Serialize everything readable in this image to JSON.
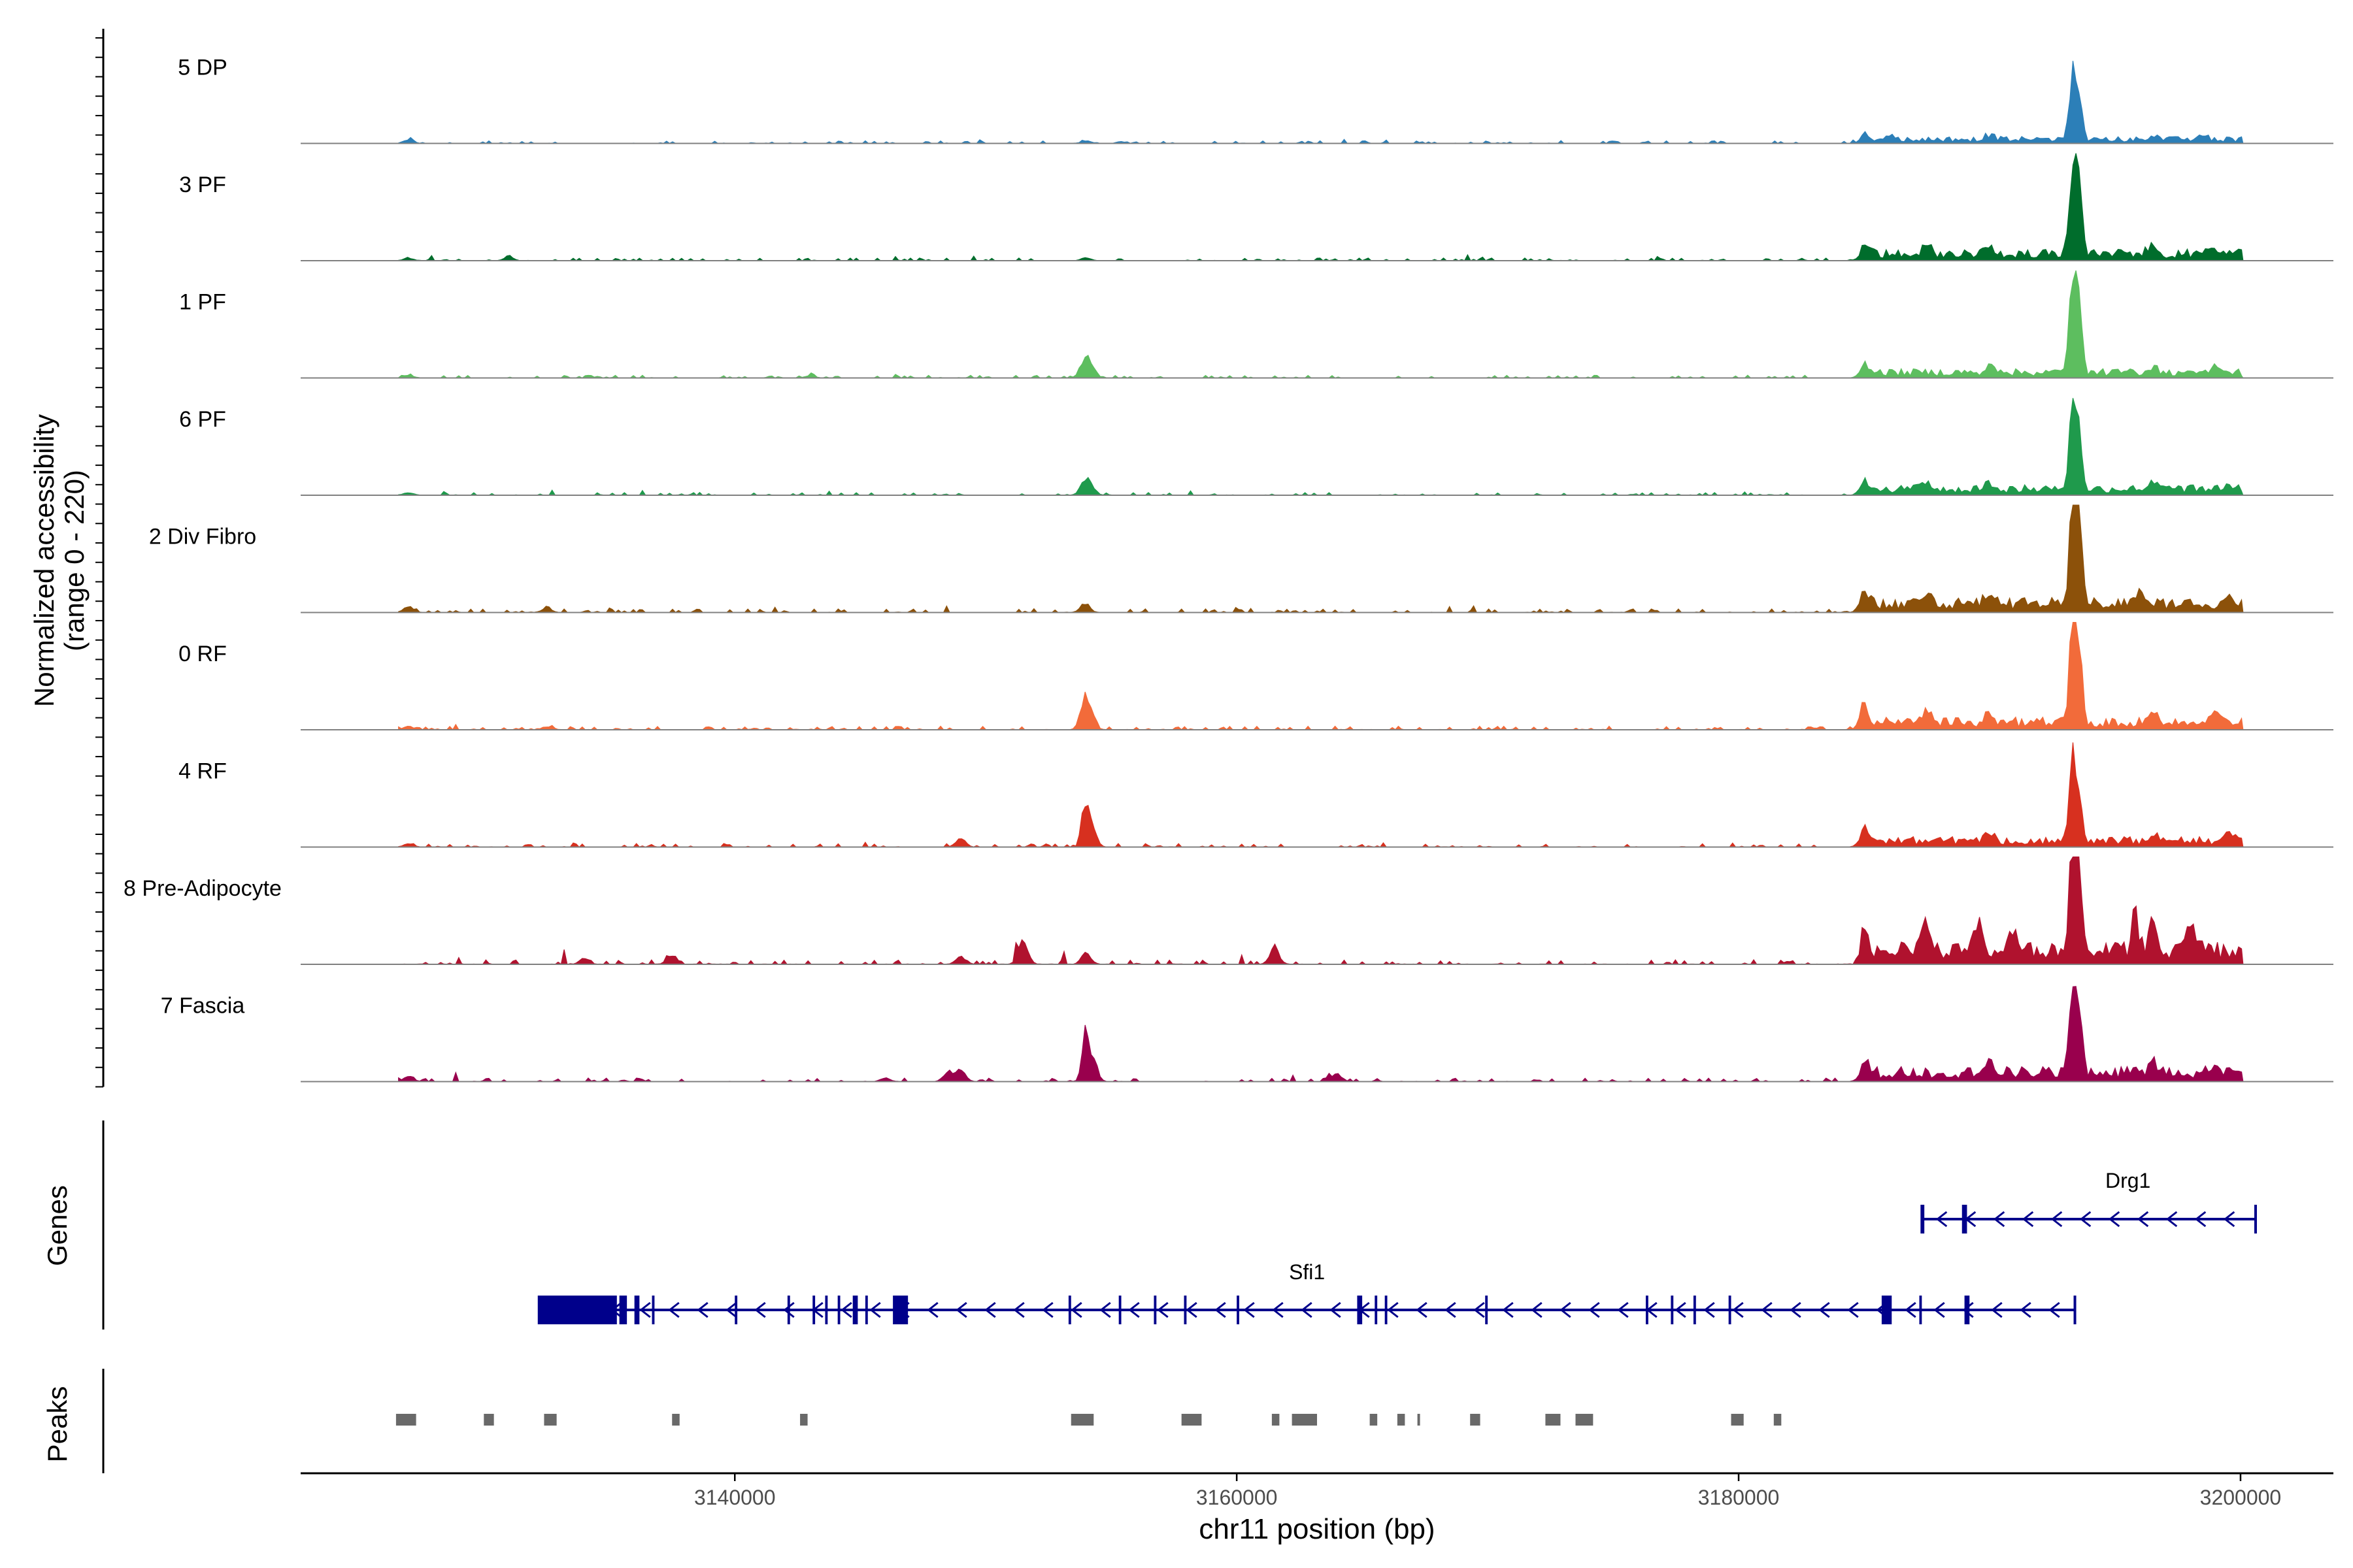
{
  "chart_data": {
    "type": "area",
    "title": "",
    "ylabel_line1": "Normalized accessibility",
    "ylabel_line2": "(range 0 - 220)",
    "xlabel": "chr11 position (bp)",
    "chromosome": "chr11",
    "xlim": [
      3122700,
      3203700
    ],
    "ylim": [
      0,
      220
    ],
    "x_ticks": [
      {
        "value": 3140000,
        "label": "3140000"
      },
      {
        "value": 3160000,
        "label": "3160000"
      },
      {
        "value": 3180000,
        "label": "3180000"
      },
      {
        "value": 3200000,
        "label": "3200000"
      }
    ],
    "signal_range": [
      3126600,
      3200100
    ],
    "tracks": [
      {
        "name": "5 DP",
        "color": "#2C7FB8",
        "peaks": [
          [
            3127000,
            8
          ],
          [
            3154000,
            6
          ],
          [
            3185000,
            12
          ],
          [
            3186000,
            10
          ],
          [
            3190000,
            10
          ],
          [
            3193300,
            125
          ],
          [
            3193550,
            100
          ],
          [
            3196500,
            9
          ],
          [
            3198500,
            8
          ]
        ],
        "background": 3,
        "region_level": 12,
        "noise": 2
      },
      {
        "name": "3 PF",
        "color": "#006D2C",
        "peaks": [
          [
            3127000,
            6
          ],
          [
            3131000,
            7
          ],
          [
            3154000,
            6
          ],
          [
            3185000,
            22
          ],
          [
            3187500,
            15
          ],
          [
            3190000,
            14
          ],
          [
            3193300,
            185
          ],
          [
            3193550,
            150
          ],
          [
            3196500,
            16
          ],
          [
            3199000,
            14
          ]
        ],
        "background": 3,
        "region_level": 20,
        "noise": 3
      },
      {
        "name": "1 PF",
        "color": "#5DBE5F",
        "peaks": [
          [
            3127000,
            6
          ],
          [
            3143000,
            5
          ],
          [
            3153950,
            38
          ],
          [
            3154200,
            20
          ],
          [
            3185000,
            20
          ],
          [
            3190000,
            13
          ],
          [
            3193300,
            210
          ],
          [
            3193550,
            170
          ],
          [
            3196500,
            12
          ],
          [
            3199000,
            11
          ]
        ],
        "background": 3,
        "region_level": 16,
        "noise": 3
      },
      {
        "name": "6 PF",
        "color": "#1F9A4C",
        "peaks": [
          [
            3127000,
            5
          ],
          [
            3153950,
            28
          ],
          [
            3154200,
            16
          ],
          [
            3185000,
            22
          ],
          [
            3187500,
            17
          ],
          [
            3190000,
            15
          ],
          [
            3193300,
            170
          ],
          [
            3193550,
            120
          ],
          [
            3196500,
            12
          ],
          [
            3199500,
            11
          ]
        ],
        "background": 3,
        "region_level": 18,
        "noise": 3
      },
      {
        "name": "2 Div Fibro",
        "color": "#8C510A",
        "peaks": [
          [
            3127000,
            14
          ],
          [
            3132500,
            10
          ],
          [
            3153950,
            20
          ],
          [
            3185000,
            35
          ],
          [
            3187500,
            25
          ],
          [
            3190000,
            22
          ],
          [
            3193300,
            210
          ],
          [
            3193550,
            200
          ],
          [
            3196000,
            25
          ],
          [
            3199500,
            15
          ]
        ],
        "background": 4,
        "region_level": 26,
        "noise": 4
      },
      {
        "name": "0 RF",
        "color": "#F26B3A",
        "peaks": [
          [
            3127000,
            8
          ],
          [
            3132500,
            6
          ],
          [
            3153950,
            55
          ],
          [
            3154150,
            30
          ],
          [
            3185000,
            35
          ],
          [
            3187500,
            22
          ],
          [
            3190000,
            20
          ],
          [
            3193300,
            185
          ],
          [
            3193550,
            160
          ],
          [
            3196500,
            22
          ],
          [
            3199000,
            14
          ]
        ],
        "background": 4,
        "region_level": 22,
        "noise": 3
      },
      {
        "name": "4 RF",
        "color": "#D7301F",
        "peaks": [
          [
            3127000,
            7
          ],
          [
            3149000,
            20
          ],
          [
            3153950,
            80
          ],
          [
            3154200,
            50
          ],
          [
            3185000,
            28
          ],
          [
            3190000,
            18
          ],
          [
            3193300,
            165
          ],
          [
            3193550,
            110
          ],
          [
            3196500,
            14
          ],
          [
            3199500,
            20
          ]
        ],
        "background": 4,
        "region_level": 18,
        "noise": 3
      },
      {
        "name": "8 Pre-Adipocyte",
        "color": "#B0122E",
        "peaks": [
          [
            3134000,
            12
          ],
          [
            3137500,
            20
          ],
          [
            3149000,
            18
          ],
          [
            3151500,
            50
          ],
          [
            3154000,
            22
          ],
          [
            3161500,
            38
          ],
          [
            3185000,
            65
          ],
          [
            3187500,
            55
          ],
          [
            3189500,
            60
          ],
          [
            3191000,
            45
          ],
          [
            3193300,
            210
          ],
          [
            3193550,
            160
          ],
          [
            3195800,
            100
          ],
          [
            3196500,
            70
          ],
          [
            3198000,
            55
          ]
        ],
        "background": 5,
        "region_level": 40,
        "noise": 10
      },
      {
        "name": "7 Fascia",
        "color": "#99004D",
        "peaks": [
          [
            3127000,
            12
          ],
          [
            3146000,
            8
          ],
          [
            3148500,
            20
          ],
          [
            3149000,
            28
          ],
          [
            3153950,
            90
          ],
          [
            3154250,
            50
          ],
          [
            3164000,
            16
          ],
          [
            3185000,
            28
          ],
          [
            3190000,
            22
          ],
          [
            3193300,
            180
          ],
          [
            3193550,
            140
          ],
          [
            3196500,
            25
          ],
          [
            3199000,
            20
          ]
        ],
        "background": 4,
        "region_level": 26,
        "noise": 5
      }
    ],
    "genes_label": "Genes",
    "genes": [
      {
        "name": "Sfi1",
        "start": 3132200,
        "end": 3193400,
        "strand": "-",
        "color": "#00008B",
        "exons": [
          [
            3132200,
            3135300
          ],
          [
            3135400,
            3135700
          ],
          [
            3136000,
            3136200
          ],
          [
            3136700,
            3136800
          ],
          [
            3140000,
            3140100
          ],
          [
            3142100,
            3142200
          ],
          [
            3143100,
            3143200
          ],
          [
            3143600,
            3143700
          ],
          [
            3144100,
            3144200
          ],
          [
            3144700,
            3144900
          ],
          [
            3145200,
            3145300
          ],
          [
            3146300,
            3146900
          ],
          [
            3153300,
            3153400
          ],
          [
            3155300,
            3155400
          ],
          [
            3156700,
            3156800
          ],
          [
            3157900,
            3158000
          ],
          [
            3160000,
            3160100
          ],
          [
            3164800,
            3165000
          ],
          [
            3165500,
            3165600
          ],
          [
            3165900,
            3166000
          ],
          [
            3169900,
            3170000
          ],
          [
            3176300,
            3176400
          ],
          [
            3177300,
            3177400
          ],
          [
            3178200,
            3178300
          ],
          [
            3179600,
            3179700
          ],
          [
            3185700,
            3186100
          ],
          [
            3187200,
            3187300
          ],
          [
            3189000,
            3189200
          ]
        ]
      },
      {
        "name": "Drg1",
        "start": 3187300,
        "end": 3200600,
        "strand": "-",
        "color": "#00008B",
        "exons": [
          [
            3187300,
            3187400
          ],
          [
            3188900,
            3189100
          ]
        ]
      }
    ],
    "peaks_label": "Peaks",
    "peaks": [
      [
        3126500,
        3127300
      ],
      [
        3130000,
        3130400
      ],
      [
        3132400,
        3132900
      ],
      [
        3137500,
        3137800
      ],
      [
        3142600,
        3142900
      ],
      [
        3153400,
        3154300
      ],
      [
        3157800,
        3158600
      ],
      [
        3161400,
        3161700
      ],
      [
        3162200,
        3163200
      ],
      [
        3165300,
        3165600
      ],
      [
        3166400,
        3166700
      ],
      [
        3167200,
        3167300
      ],
      [
        3169300,
        3169700
      ],
      [
        3172300,
        3172900
      ],
      [
        3173500,
        3174200
      ],
      [
        3179700,
        3180200
      ],
      [
        3181400,
        3181700
      ]
    ],
    "peak_color": "#696969"
  }
}
